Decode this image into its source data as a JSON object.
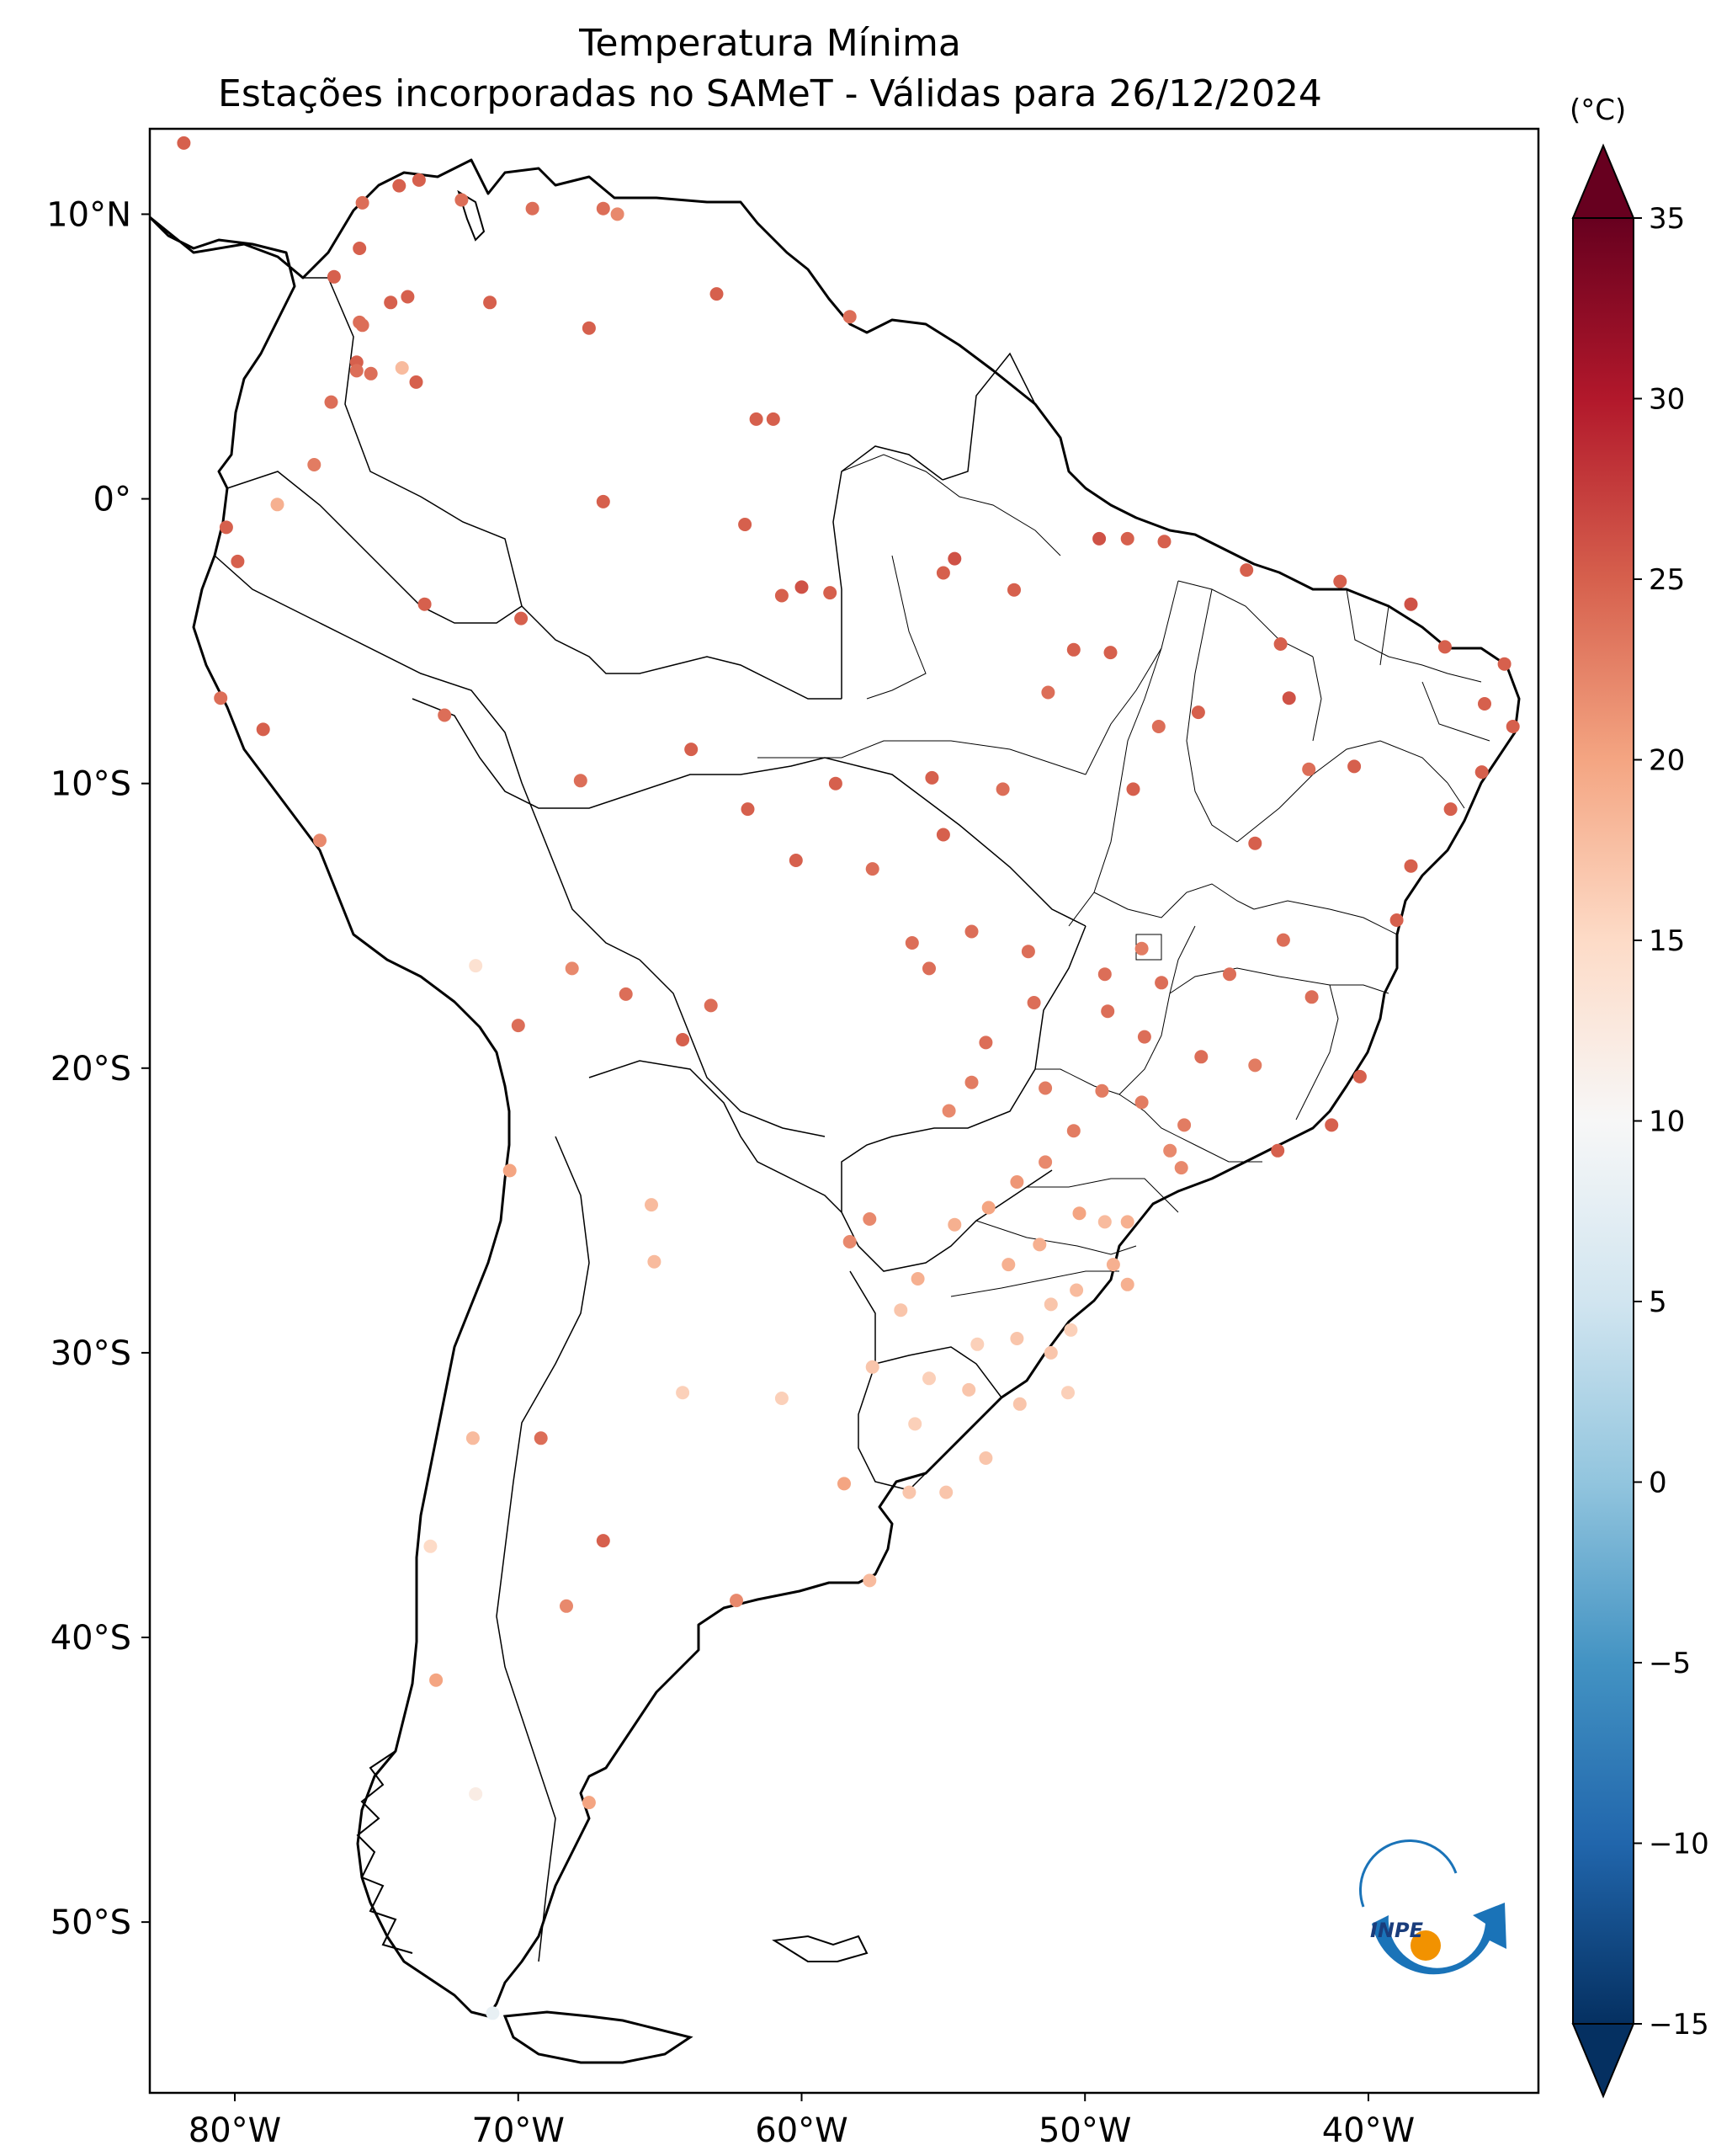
{
  "title": "Temperatura Mínima",
  "subtitle": "Estações incorporadas no SAMeT - Válidas para 26/12/2024",
  "colorbar": {
    "unit": "(°C)",
    "min": -15,
    "max": 35,
    "ticks": [
      "35",
      "30",
      "25",
      "20",
      "15",
      "10",
      "5",
      "0",
      "−5",
      "−10",
      "−15"
    ],
    "colormap": "RdBu_r",
    "extend": "both"
  },
  "map": {
    "projection": "PlateCarree",
    "lon_range": [
      -83,
      -34
    ],
    "lat_range": [
      -56,
      13
    ],
    "lon_ticks": [
      {
        "value": -80,
        "label": "80°W"
      },
      {
        "value": -70,
        "label": "70°W"
      },
      {
        "value": -60,
        "label": "60°W"
      },
      {
        "value": -50,
        "label": "50°W"
      },
      {
        "value": -40,
        "label": "40°W"
      }
    ],
    "lat_ticks": [
      {
        "value": 10,
        "label": "10°N"
      },
      {
        "value": 0,
        "label": "0°"
      },
      {
        "value": -10,
        "label": "10°S"
      },
      {
        "value": -20,
        "label": "20°S"
      },
      {
        "value": -30,
        "label": "30°S"
      },
      {
        "value": -40,
        "label": "40°S"
      },
      {
        "value": -50,
        "label": "50°S"
      }
    ],
    "logo_text": "INPE"
  },
  "chart_data": {
    "type": "scatter",
    "x_label": "",
    "y_label": "",
    "points": [
      [
        -81.8,
        12.5,
        25
      ],
      [
        -73.5,
        11.2,
        25
      ],
      [
        -74.2,
        11.0,
        25
      ],
      [
        -75.5,
        10.4,
        24
      ],
      [
        -72.0,
        10.5,
        24
      ],
      [
        -69.5,
        10.2,
        24
      ],
      [
        -67.0,
        10.2,
        24
      ],
      [
        -66.5,
        10.0,
        22
      ],
      [
        -75.6,
        8.8,
        25
      ],
      [
        -76.5,
        7.8,
        25
      ],
      [
        -74.5,
        6.9,
        25
      ],
      [
        -73.9,
        7.1,
        25
      ],
      [
        -75.6,
        6.2,
        24
      ],
      [
        -75.5,
        6.1,
        24
      ],
      [
        -75.7,
        4.8,
        25
      ],
      [
        -75.7,
        4.5,
        24
      ],
      [
        -74.1,
        4.6,
        18
      ],
      [
        -75.2,
        4.4,
        24
      ],
      [
        -73.6,
        4.1,
        25
      ],
      [
        -76.6,
        3.4,
        24
      ],
      [
        -71.0,
        6.9,
        25
      ],
      [
        -67.5,
        6.0,
        25
      ],
      [
        -58.3,
        6.4,
        24
      ],
      [
        -61.0,
        2.8,
        25
      ],
      [
        -61.6,
        2.8,
        25
      ],
      [
        -63.0,
        7.2,
        25
      ],
      [
        -77.2,
        1.2,
        23
      ],
      [
        -78.5,
        -0.2,
        19
      ],
      [
        -79.9,
        -2.2,
        25
      ],
      [
        -80.3,
        -1.0,
        25
      ],
      [
        -80.5,
        -7.0,
        24
      ],
      [
        -79.0,
        -8.1,
        25
      ],
      [
        -77.0,
        -12.0,
        22
      ],
      [
        -71.5,
        -16.4,
        14
      ],
      [
        -70.0,
        -18.5,
        24
      ],
      [
        -70.3,
        -23.6,
        20
      ],
      [
        -73.1,
        -36.8,
        15
      ],
      [
        -71.6,
        -33.0,
        18
      ],
      [
        -72.9,
        -41.5,
        20
      ],
      [
        -71.5,
        -45.5,
        12
      ],
      [
        -70.9,
        -53.2,
        8
      ],
      [
        -65.3,
        -24.8,
        18
      ],
      [
        -65.2,
        -26.8,
        18
      ],
      [
        -64.2,
        -31.4,
        16
      ],
      [
        -60.7,
        -31.6,
        16
      ],
      [
        -58.5,
        -34.6,
        20
      ],
      [
        -57.6,
        -38.0,
        18
      ],
      [
        -62.3,
        -38.7,
        22
      ],
      [
        -67.5,
        -45.8,
        20
      ],
      [
        -68.3,
        -38.9,
        22
      ],
      [
        -67.0,
        -36.6,
        25
      ],
      [
        -69.2,
        -33.0,
        24
      ],
      [
        -64.2,
        -19.0,
        25
      ],
      [
        -63.2,
        -17.8,
        24
      ],
      [
        -66.2,
        -17.4,
        24
      ],
      [
        -68.1,
        -16.5,
        22
      ],
      [
        -60.0,
        -3.1,
        26
      ],
      [
        -60.7,
        -3.4,
        25
      ],
      [
        -63.9,
        -8.8,
        25
      ],
      [
        -67.8,
        -9.9,
        24
      ],
      [
        -72.6,
        -7.6,
        24
      ],
      [
        -73.3,
        -3.7,
        25
      ],
      [
        -69.9,
        -4.2,
        25
      ],
      [
        -67.0,
        -0.1,
        25
      ],
      [
        -62.0,
        -0.9,
        25
      ],
      [
        -59.0,
        -3.3,
        25
      ],
      [
        -55.0,
        -2.6,
        25
      ],
      [
        -54.6,
        -2.1,
        26
      ],
      [
        -52.5,
        -3.2,
        25
      ],
      [
        -49.5,
        -1.4,
        26
      ],
      [
        -48.5,
        -1.4,
        25
      ],
      [
        -47.2,
        -1.5,
        25
      ],
      [
        -44.3,
        -2.5,
        25
      ],
      [
        -41.0,
        -2.9,
        25
      ],
      [
        -38.5,
        -3.7,
        26
      ],
      [
        -37.3,
        -5.2,
        25
      ],
      [
        -35.2,
        -5.8,
        25
      ],
      [
        -35.9,
        -7.2,
        25
      ],
      [
        -34.9,
        -8.0,
        25
      ],
      [
        -36.0,
        -9.6,
        25
      ],
      [
        -37.1,
        -10.9,
        25
      ],
      [
        -38.5,
        -12.9,
        25
      ],
      [
        -39.0,
        -14.8,
        25
      ],
      [
        -40.3,
        -20.3,
        25
      ],
      [
        -41.3,
        -22.0,
        25
      ],
      [
        -43.2,
        -22.9,
        25
      ],
      [
        -46.6,
        -23.5,
        22
      ],
      [
        -48.5,
        -25.4,
        19
      ],
      [
        -49.3,
        -25.4,
        18
      ],
      [
        -48.5,
        -27.6,
        19
      ],
      [
        -51.2,
        -30.0,
        17
      ],
      [
        -52.3,
        -31.8,
        17
      ],
      [
        -53.5,
        -33.7,
        17
      ],
      [
        -54.9,
        -34.9,
        17
      ],
      [
        -56.2,
        -34.9,
        17
      ],
      [
        -56.0,
        -32.5,
        16
      ],
      [
        -55.5,
        -30.9,
        16
      ],
      [
        -57.5,
        -30.5,
        17
      ],
      [
        -56.5,
        -28.5,
        17
      ],
      [
        -55.9,
        -27.4,
        19
      ],
      [
        -54.6,
        -25.5,
        19
      ],
      [
        -57.6,
        -25.3,
        22
      ],
      [
        -58.3,
        -26.1,
        22
      ],
      [
        -54.8,
        -21.5,
        22
      ],
      [
        -54.0,
        -20.5,
        23
      ],
      [
        -55.5,
        -16.5,
        24
      ],
      [
        -56.1,
        -15.6,
        24
      ],
      [
        -54.0,
        -15.2,
        24
      ],
      [
        -52.0,
        -15.9,
        24
      ],
      [
        -49.3,
        -16.7,
        24
      ],
      [
        -48.0,
        -15.8,
        23
      ],
      [
        -47.3,
        -17.0,
        24
      ],
      [
        -49.2,
        -18.0,
        24
      ],
      [
        -51.8,
        -17.7,
        24
      ],
      [
        -53.5,
        -19.1,
        24
      ],
      [
        -52.9,
        -10.2,
        24
      ],
      [
        -55.0,
        -11.8,
        25
      ],
      [
        -57.5,
        -13.0,
        24
      ],
      [
        -58.8,
        -10.0,
        25
      ],
      [
        -61.9,
        -10.9,
        25
      ],
      [
        -60.2,
        -12.7,
        25
      ],
      [
        -55.4,
        -9.8,
        25
      ],
      [
        -51.3,
        -6.8,
        24
      ],
      [
        -50.4,
        -5.3,
        25
      ],
      [
        -49.1,
        -5.4,
        25
      ],
      [
        -48.3,
        -10.2,
        25
      ],
      [
        -47.4,
        -8.0,
        24
      ],
      [
        -46.0,
        -7.5,
        25
      ],
      [
        -43.1,
        -5.1,
        25
      ],
      [
        -42.8,
        -7.0,
        26
      ],
      [
        -42.1,
        -9.5,
        24
      ],
      [
        -40.5,
        -9.4,
        25
      ],
      [
        -44.0,
        -12.1,
        25
      ],
      [
        -43.0,
        -15.5,
        24
      ],
      [
        -44.9,
        -16.7,
        24
      ],
      [
        -42.0,
        -17.5,
        24
      ],
      [
        -44.0,
        -19.9,
        23
      ],
      [
        -45.9,
        -19.6,
        24
      ],
      [
        -47.9,
        -18.9,
        24
      ],
      [
        -46.5,
        -22.0,
        23
      ],
      [
        -47.0,
        -22.9,
        22
      ],
      [
        -48.0,
        -21.2,
        23
      ],
      [
        -49.4,
        -20.8,
        23
      ],
      [
        -50.4,
        -22.2,
        23
      ],
      [
        -51.4,
        -20.7,
        23
      ],
      [
        -51.4,
        -23.3,
        22
      ],
      [
        -52.4,
        -24.0,
        21
      ],
      [
        -53.4,
        -24.9,
        20
      ],
      [
        -50.2,
        -25.1,
        20
      ],
      [
        -51.6,
        -26.2,
        19
      ],
      [
        -52.7,
        -26.9,
        19
      ],
      [
        -50.3,
        -27.8,
        18
      ],
      [
        -49.0,
        -26.9,
        19
      ],
      [
        -51.2,
        -28.3,
        17
      ],
      [
        -53.8,
        -29.7,
        16
      ],
      [
        -52.4,
        -29.5,
        17
      ],
      [
        -50.5,
        -29.2,
        16
      ],
      [
        -54.1,
        -31.3,
        17
      ],
      [
        -50.6,
        -31.4,
        16
      ]
    ]
  }
}
